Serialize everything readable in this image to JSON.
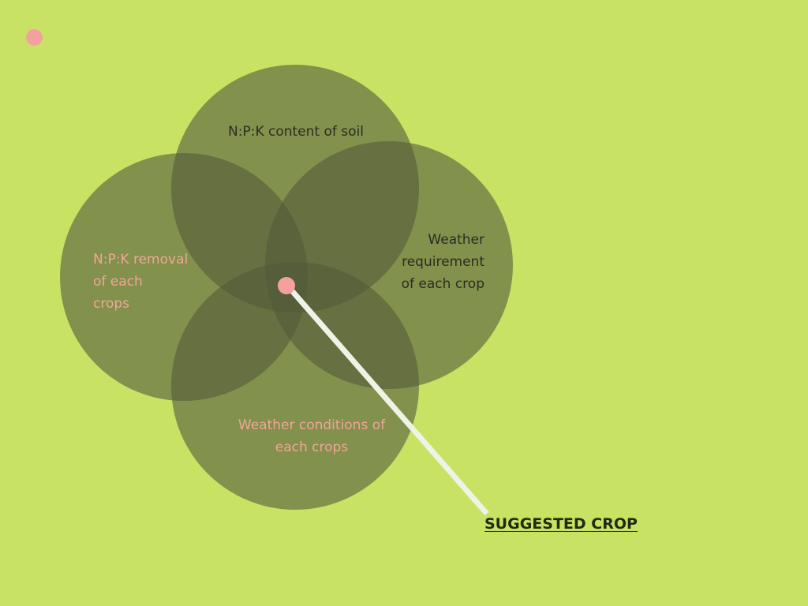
{
  "colors": {
    "background": "#c8e364",
    "circle_fill": "#535a3a",
    "dark_text": "#2c2c24",
    "pink_text": "#f1a69a",
    "dot": "#f4a0a0",
    "pointer_line": "#eef3e6"
  },
  "diagram": {
    "circles": {
      "top": {
        "label": "N:P:K content of soil"
      },
      "left": {
        "label_lines": [
          "N:P:K removal",
          "of each",
          "crops"
        ]
      },
      "right": {
        "label_lines": [
          "Weather",
          "requirement",
          "of each crop"
        ]
      },
      "bottom": {
        "label_lines": [
          "Weather conditions of",
          "each crops"
        ]
      }
    },
    "result": {
      "label": "SUGGESTED CROP"
    }
  }
}
